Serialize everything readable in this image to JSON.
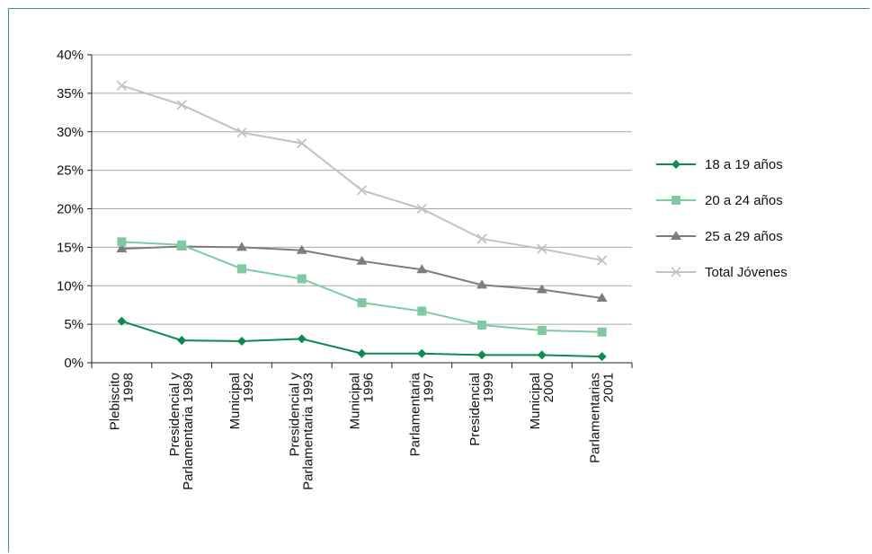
{
  "chart_data": {
    "type": "line",
    "categories": [
      [
        "Plebiscito",
        "1998"
      ],
      [
        "Presidencial y",
        "Parlamentaria 1989"
      ],
      [
        "Municipal",
        "1992"
      ],
      [
        "Presidencial y",
        "Parlamentaria 1993"
      ],
      [
        "Municipal",
        "1996"
      ],
      [
        "Parlamentaria",
        "1997"
      ],
      [
        "Presidencial",
        "1999"
      ],
      [
        "Municipal",
        "2000"
      ],
      [
        "Parlamentarias",
        "2001"
      ]
    ],
    "y_ticks": [
      "0%",
      "5%",
      "10%",
      "15%",
      "20%",
      "25%",
      "30%",
      "35%",
      "40%"
    ],
    "ylim": [
      0,
      40
    ],
    "grid": true,
    "legend_position": "right",
    "series": [
      {
        "name": "18 a 19 años",
        "color": "#0c8a4f",
        "marker": "diamond",
        "values": [
          5.4,
          2.9,
          2.8,
          3.1,
          1.2,
          1.2,
          1.0,
          1.0,
          0.8
        ]
      },
      {
        "name": "20 a 24 años",
        "color": "#7fcaa3",
        "marker": "square",
        "values": [
          15.7,
          15.3,
          12.2,
          10.9,
          7.8,
          6.7,
          4.9,
          4.2,
          4.0
        ]
      },
      {
        "name": "25 a 29 años",
        "color": "#7d7d7d",
        "marker": "triangle",
        "values": [
          14.8,
          15.1,
          15.0,
          14.6,
          13.2,
          12.1,
          10.1,
          9.5,
          8.4
        ]
      },
      {
        "name": "Total Jóvenes",
        "color": "#c2c2c2",
        "marker": "x",
        "values": [
          36.0,
          33.5,
          29.9,
          28.5,
          22.4,
          20.0,
          16.1,
          14.8,
          13.3
        ]
      }
    ]
  }
}
